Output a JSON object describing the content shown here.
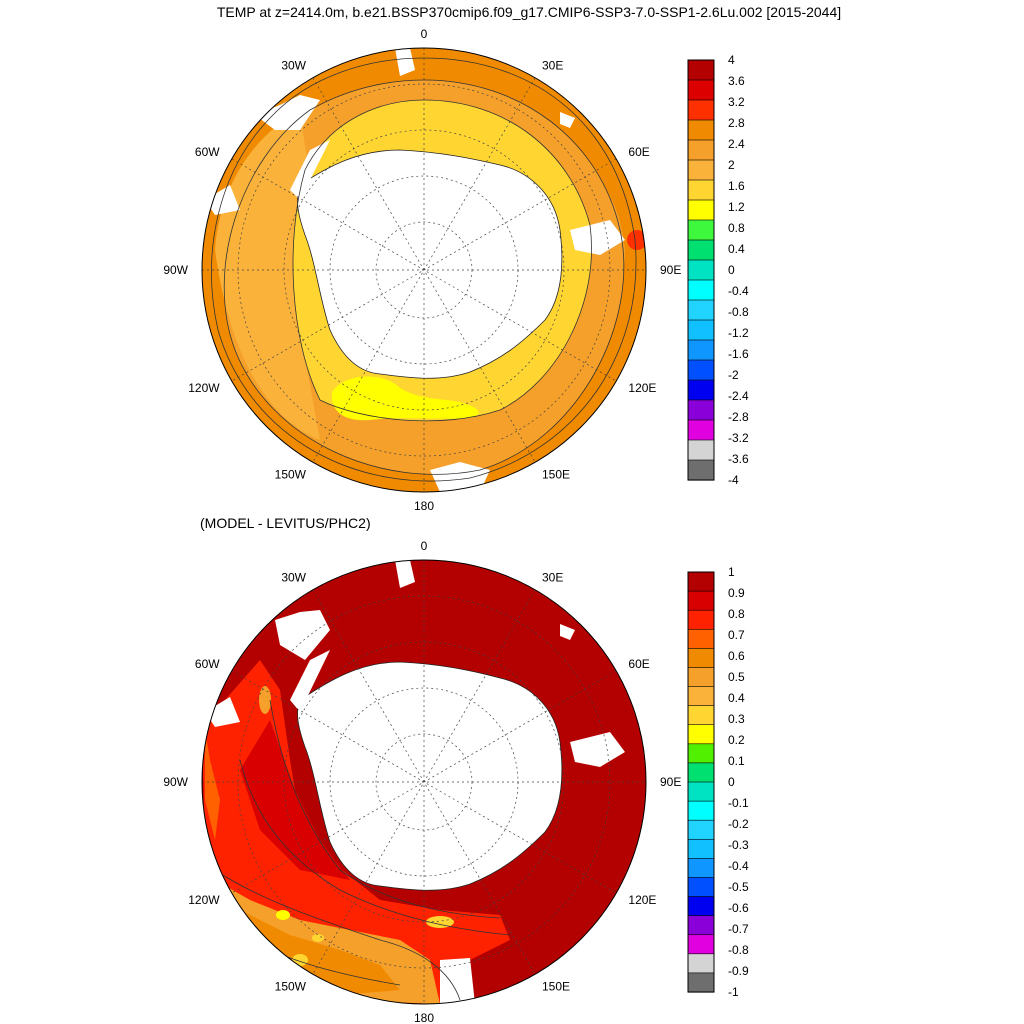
{
  "title": "TEMP at z=2414.0m, b.e21.BSSP370cmip6.f09_g17.CMIP6-SSP3-7.0-SSP1-2.6Lu.002 [2015-2044]",
  "diff_title": "(MODEL - LEVITUS/PHC2)",
  "lon_labels": [
    "0",
    "30E",
    "60E",
    "90E",
    "120E",
    "150E",
    "180",
    "150W",
    "120W",
    "90W",
    "60W",
    "30W"
  ],
  "top_colorbar": {
    "labels": [
      "4",
      "3.6",
      "3.2",
      "2.8",
      "2.4",
      "2",
      "1.6",
      "1.2",
      "0.8",
      "0.4",
      "0",
      "-0.4",
      "-0.8",
      "-1.2",
      "-1.6",
      "-2",
      "-2.4",
      "-2.8",
      "-3.2",
      "-3.6",
      "-4"
    ],
    "colors": [
      "#b30000",
      "#dd0000",
      "#ff3000",
      "#f08a00",
      "#f5a02a",
      "#fab23a",
      "#ffd532",
      "#ffff00",
      "#3ef83e",
      "#00e070",
      "#00e3c3",
      "#00ffff",
      "#21d4ff",
      "#10c0ff",
      "#0f96ff",
      "#0050ff",
      "#0000f0",
      "#8a00d8",
      "#e000e0",
      "#d4d4d4",
      "#6e6e6e"
    ]
  },
  "bottom_colorbar": {
    "labels": [
      "1",
      "0.9",
      "0.8",
      "0.7",
      "0.6",
      "0.5",
      "0.4",
      "0.3",
      "0.2",
      "0.1",
      "0",
      "-0.1",
      "-0.2",
      "-0.3",
      "-0.4",
      "-0.5",
      "-0.6",
      "-0.7",
      "-0.8",
      "-0.9",
      "-1"
    ],
    "colors": [
      "#b30000",
      "#d80000",
      "#ff2200",
      "#ff6000",
      "#f08a00",
      "#f5a02a",
      "#fab23a",
      "#ffd532",
      "#ffff00",
      "#50f000",
      "#00e070",
      "#00e3c3",
      "#00ffff",
      "#21d4ff",
      "#10c0ff",
      "#0f96ff",
      "#0050ff",
      "#0000f0",
      "#8a00d8",
      "#e000e0",
      "#d4d4d4",
      "#6e6e6e"
    ]
  }
}
